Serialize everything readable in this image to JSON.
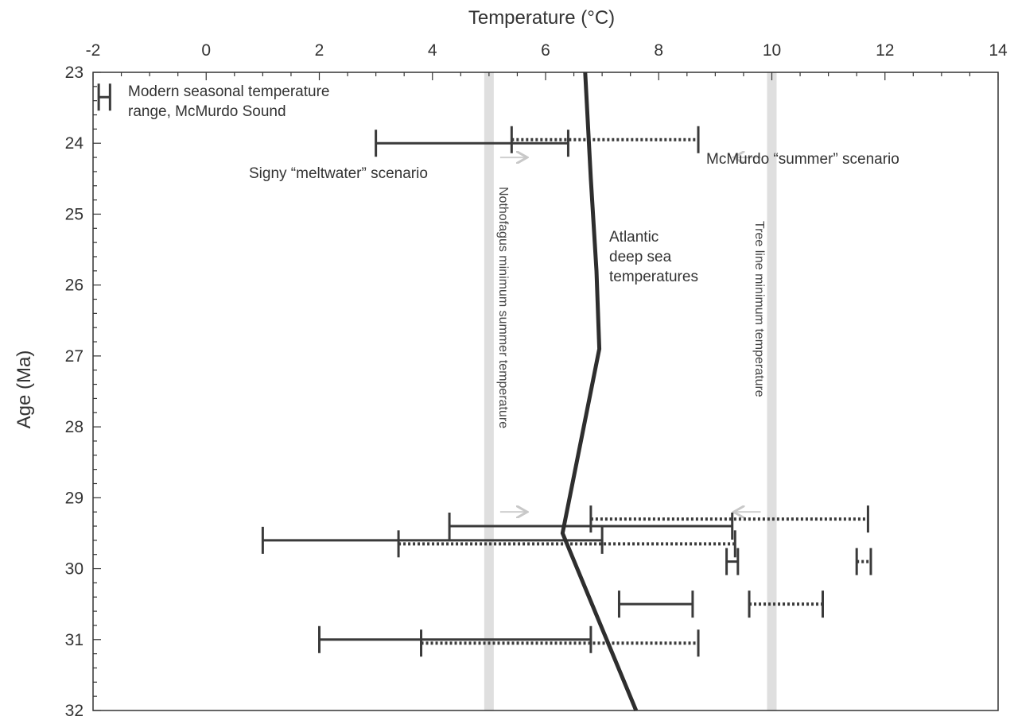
{
  "chart_data": {
    "type": "range",
    "xlabel": "Temperature (°C)",
    "ylabel": "Age (Ma)",
    "xlim": [
      -2,
      14
    ],
    "ylim": [
      23,
      32
    ],
    "x_axis_position": "top",
    "y_axis_inverted": true,
    "grid": false,
    "x_ticks": [
      "-2",
      "0",
      "2",
      "4",
      "6",
      "8",
      "10",
      "12",
      "14"
    ],
    "y_ticks": [
      "23",
      "24",
      "25",
      "26",
      "27",
      "28",
      "29",
      "30",
      "31",
      "32"
    ],
    "series": [
      {
        "name": "Signy “meltwater” scenario",
        "style": "solid",
        "ranges": [
          {
            "age": 24.0,
            "min": 3.0,
            "max": 6.4
          },
          {
            "age": 29.4,
            "min": 4.3,
            "max": 9.3
          },
          {
            "age": 29.6,
            "min": 1.0,
            "max": 7.0
          },
          {
            "age": 29.9,
            "min": 9.2,
            "max": 9.4
          },
          {
            "age": 30.5,
            "min": 7.3,
            "max": 8.6
          },
          {
            "age": 31.0,
            "min": 2.0,
            "max": 6.8
          }
        ]
      },
      {
        "name": "McMurdo “summer” scenario",
        "style": "dotted",
        "ranges": [
          {
            "age": 23.95,
            "min": 5.4,
            "max": 8.7
          },
          {
            "age": 29.3,
            "min": 6.8,
            "max": 11.7
          },
          {
            "age": 29.65,
            "min": 3.4,
            "max": 9.35
          },
          {
            "age": 29.9,
            "min": 11.5,
            "max": 11.75
          },
          {
            "age": 30.5,
            "min": 9.6,
            "max": 10.9
          },
          {
            "age": 31.05,
            "min": 3.8,
            "max": 8.7
          }
        ]
      },
      {
        "name": "Atlantic deep sea temperatures",
        "style": "line",
        "points": [
          {
            "age": 23.0,
            "temp": 6.7
          },
          {
            "age": 24.5,
            "temp": 6.8
          },
          {
            "age": 25.8,
            "temp": 6.9
          },
          {
            "age": 26.9,
            "temp": 6.95
          },
          {
            "age": 29.5,
            "temp": 6.3
          },
          {
            "age": 32.0,
            "temp": 7.6
          }
        ]
      }
    ],
    "reference_lines": [
      {
        "name": "Nothofagus minimum summer temperature",
        "temp": 5.0
      },
      {
        "name": "Tree line minimum temperature",
        "temp": 10.0
      }
    ],
    "legend": {
      "text": "Modern seasonal temperature range, McMurdo Sound",
      "text_line1": "Modern seasonal temperature",
      "text_line2": "range, McMurdo Sound",
      "range": {
        "age": 23.35,
        "min": -1.9,
        "max": -1.7
      }
    },
    "annotations": {
      "signy": "Signy “meltwater” scenario",
      "mcmurdo": "McMurdo “summer” scenario",
      "atlantic_line1": "Atlantic",
      "atlantic_line2": "deep sea",
      "atlantic_line3": "temperatures",
      "nothofagus": "Nothofagus minimum summer temperature",
      "treeline": "Tree line minimum temperature"
    },
    "colors": {
      "solid_bar": "#3a3a3a",
      "dotted_bar": "#3a3a3a",
      "deep_sea_line": "#2e2e2e",
      "reference_band": "#d4d4d4",
      "axis": "#333333"
    }
  }
}
